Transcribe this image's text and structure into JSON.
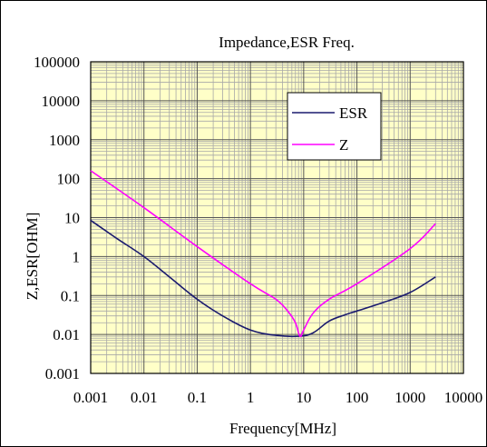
{
  "chart_data": {
    "type": "line",
    "title": "Impedance,ESR Freq.",
    "xlabel": "Frequency[MHz]",
    "ylabel": "Z,ESR[OHM]",
    "x_scale": "log",
    "y_scale": "log",
    "xlim": [
      0.001,
      10000
    ],
    "ylim": [
      0.001,
      100000
    ],
    "x_ticks": [
      "0.001",
      "0.01",
      "0.1",
      "1",
      "10",
      "100",
      "1000",
      "10000"
    ],
    "y_ticks": [
      "0.001",
      "0.01",
      "0.1",
      "1",
      "10",
      "100",
      "1000",
      "10000",
      "100000"
    ],
    "grid": true,
    "legend_position": "top-right",
    "series": [
      {
        "name": "ESR",
        "color": "#1a1a6e",
        "points": [
          [
            0.001,
            8.5
          ],
          [
            0.003,
            3.0
          ],
          [
            0.01,
            1.0
          ],
          [
            0.03,
            0.3
          ],
          [
            0.1,
            0.08
          ],
          [
            0.3,
            0.03
          ],
          [
            1,
            0.013
          ],
          [
            3,
            0.0095
          ],
          [
            8,
            0.009
          ],
          [
            15,
            0.011
          ],
          [
            30,
            0.022
          ],
          [
            60,
            0.032
          ],
          [
            100,
            0.04
          ],
          [
            300,
            0.065
          ],
          [
            1000,
            0.12
          ],
          [
            3000,
            0.3
          ]
        ]
      },
      {
        "name": "Z",
        "color": "#ff00ff",
        "points": [
          [
            0.001,
            160
          ],
          [
            0.01,
            18
          ],
          [
            0.1,
            1.8
          ],
          [
            1,
            0.2
          ],
          [
            3,
            0.08
          ],
          [
            5,
            0.04
          ],
          [
            7,
            0.02
          ],
          [
            8.5,
            0.009
          ],
          [
            10,
            0.013
          ],
          [
            15,
            0.035
          ],
          [
            30,
            0.08
          ],
          [
            100,
            0.2
          ],
          [
            1000,
            1.6
          ],
          [
            3000,
            7
          ]
        ]
      }
    ]
  }
}
